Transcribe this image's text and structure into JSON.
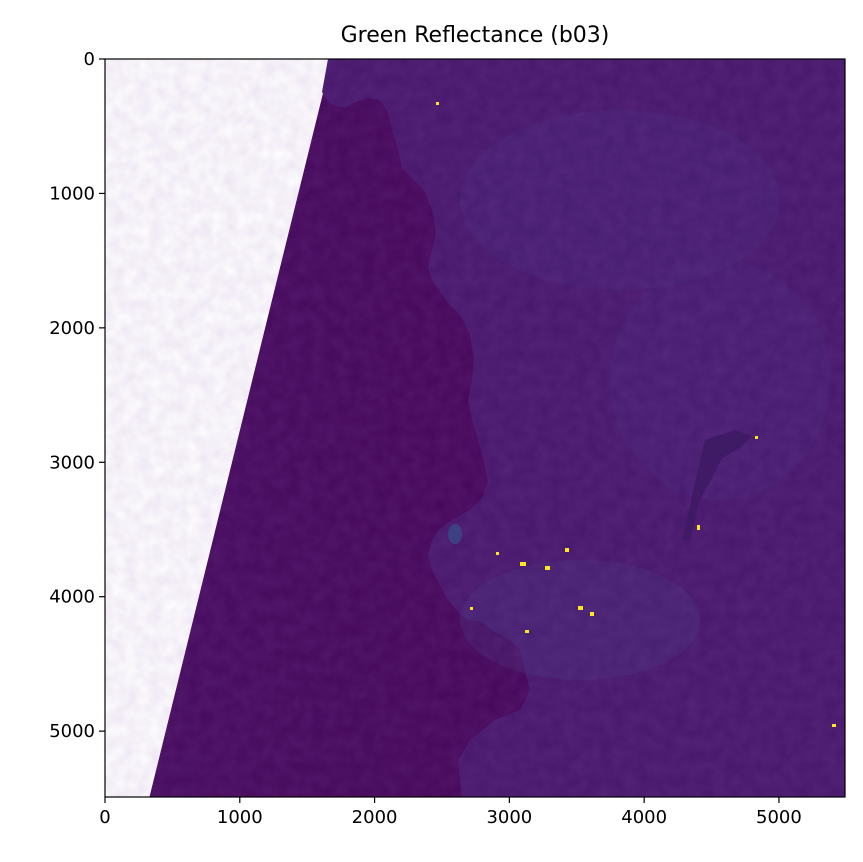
{
  "chart_data": {
    "type": "heatmap",
    "title": "Green Reflectance (b03)",
    "xlabel": "",
    "ylabel": "",
    "xlim": [
      0,
      5490
    ],
    "ylim": [
      5490,
      0
    ],
    "x_ticks": [
      0,
      1000,
      2000,
      3000,
      4000,
      5000
    ],
    "y_ticks": [
      0,
      1000,
      2000,
      3000,
      4000,
      5000
    ],
    "x_tick_labels": [
      "0",
      "1000",
      "2000",
      "3000",
      "4000",
      "5000"
    ],
    "y_tick_labels": [
      "0",
      "1000",
      "2000",
      "3000",
      "4000",
      "5000"
    ],
    "grid": false,
    "colormap": "viridis",
    "colors": {
      "ocean": "#440154",
      "ocean_far": "#460b5e",
      "land": "#47176c",
      "land_light": "#482677",
      "bright_urban": "#fde725",
      "nodata": "#ffffff"
    },
    "nodata_region": {
      "edge_x_at_top": 1680,
      "edge_x_at_bottom": 330
    }
  }
}
